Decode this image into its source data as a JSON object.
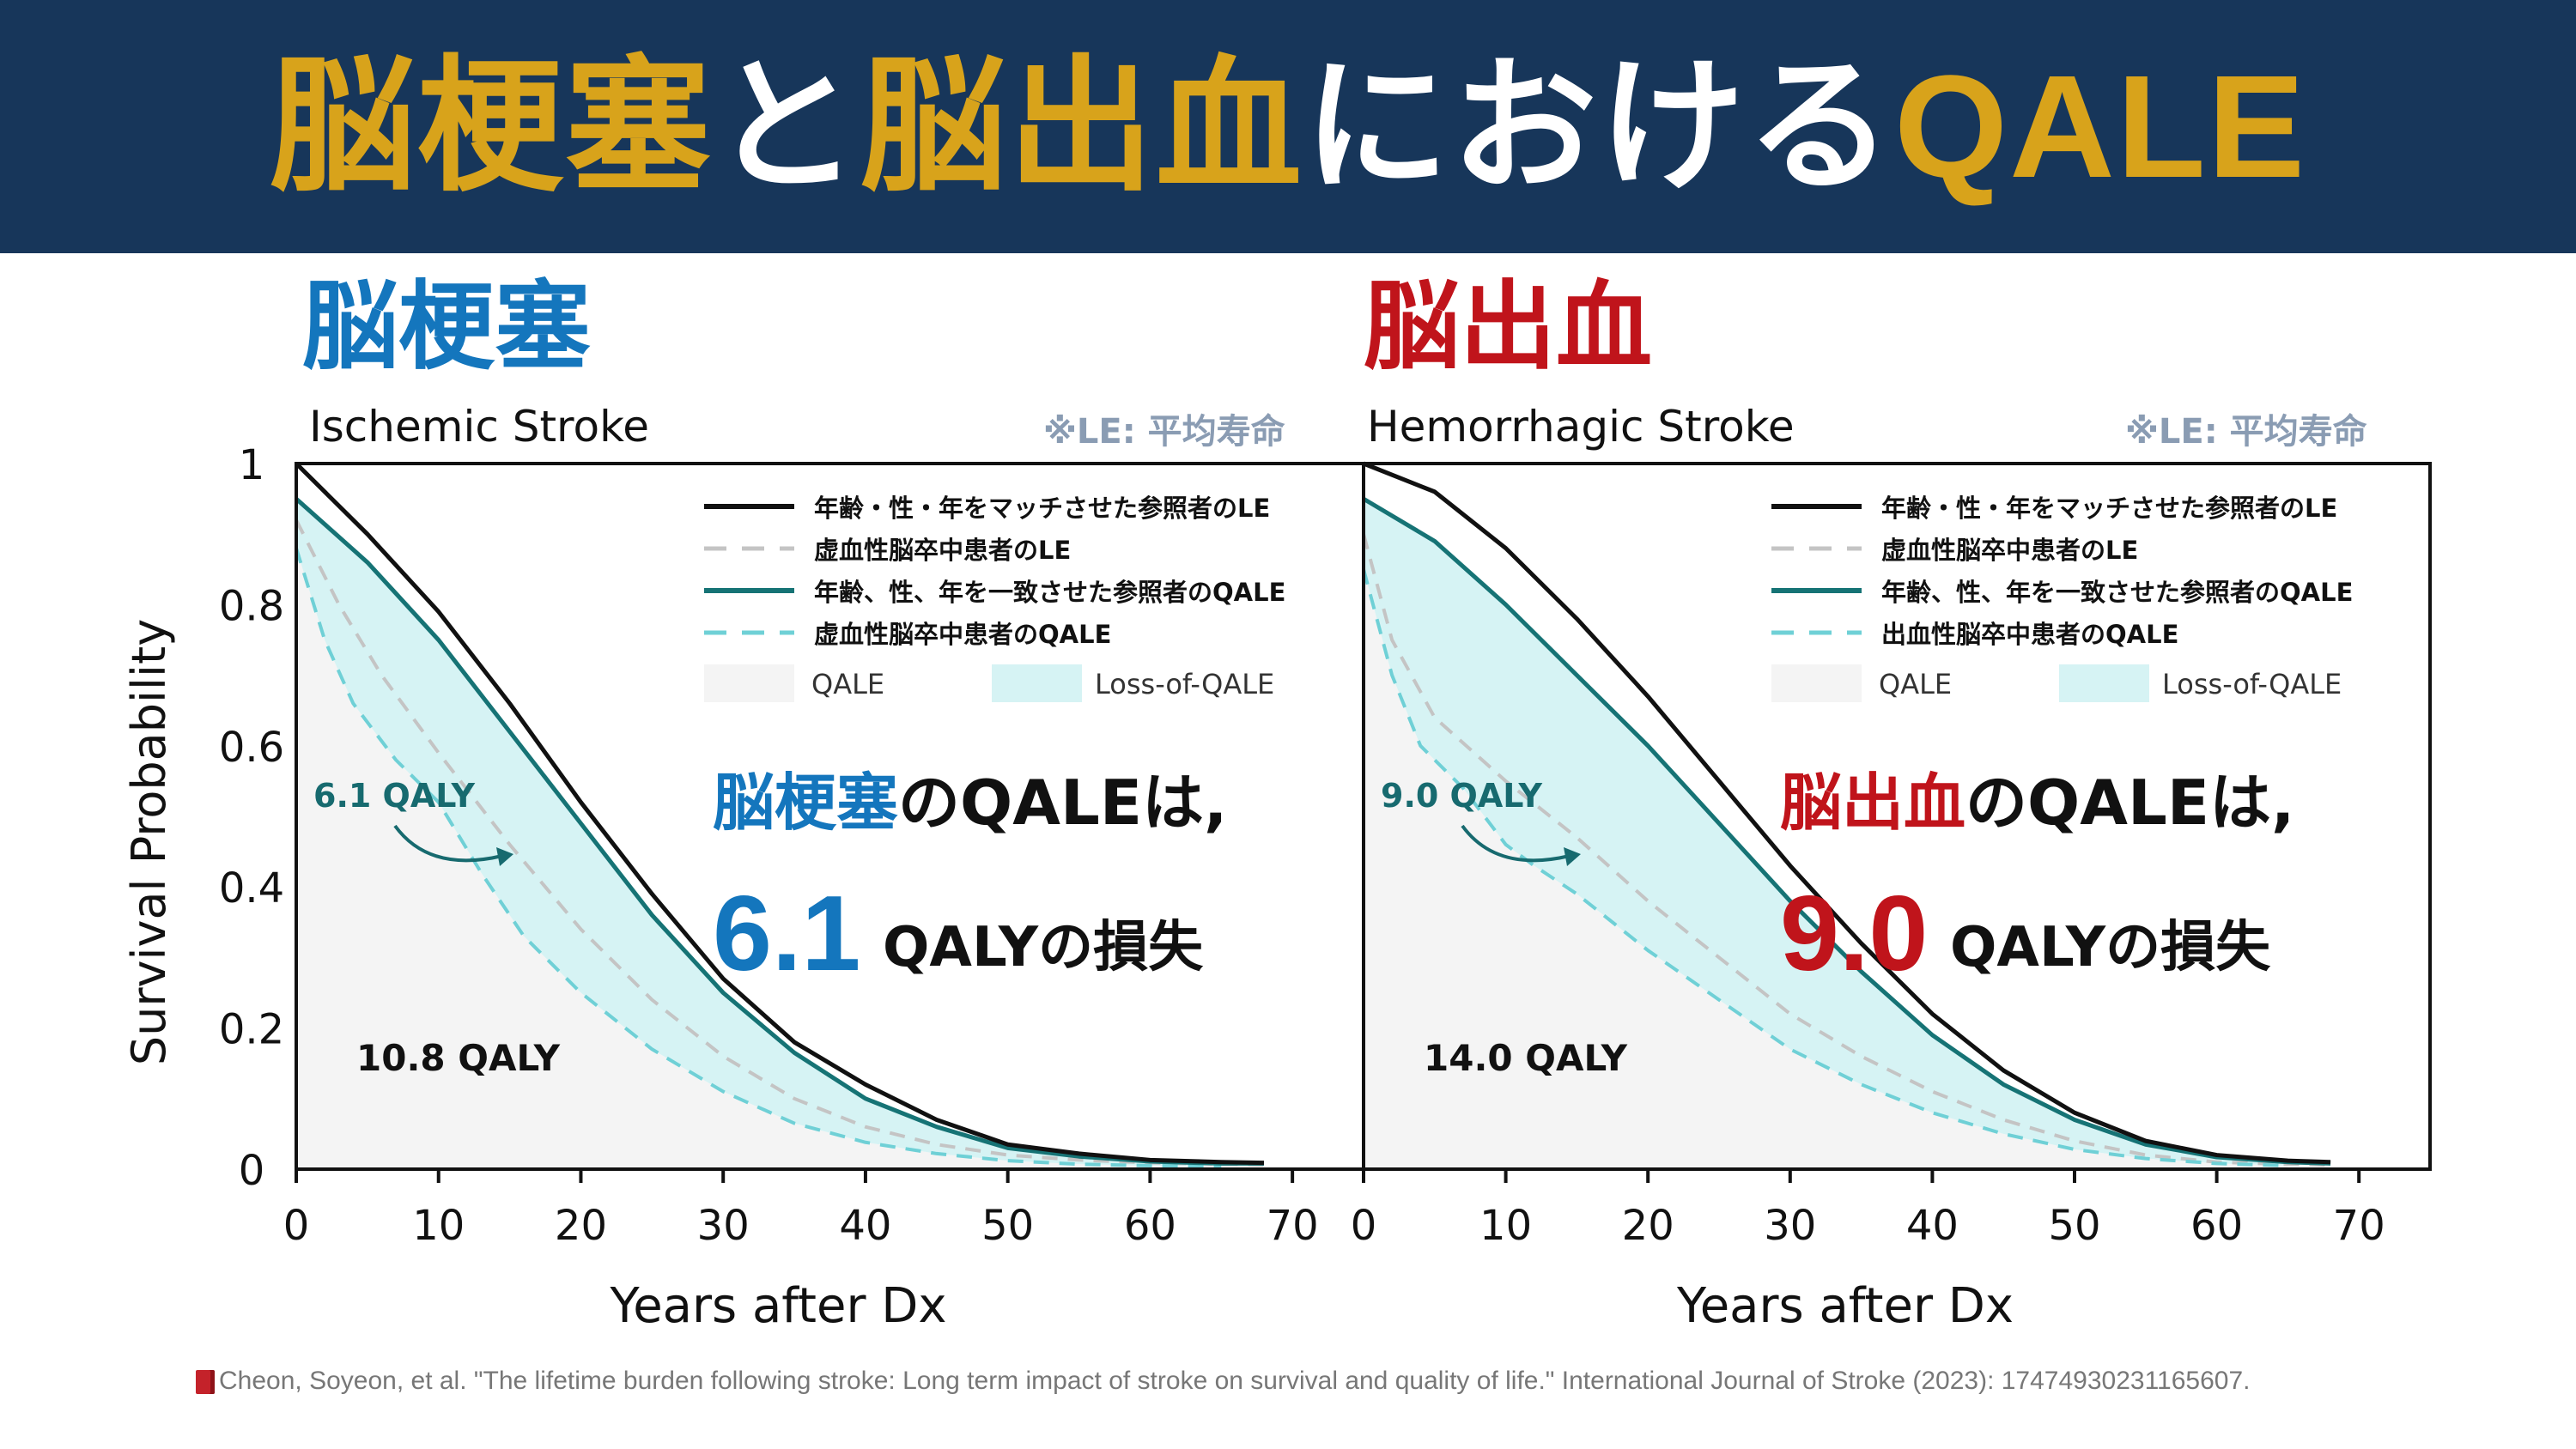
{
  "header": {
    "title_parts": [
      {
        "text": "脳梗塞",
        "color": "#d8a31b"
      },
      {
        "text": "と",
        "color": "#ffffff"
      },
      {
        "text": "脳出血",
        "color": "#d8a31b"
      },
      {
        "text": "における",
        "color": "#ffffff"
      },
      {
        "text": "QALE",
        "color": "#d8a31b"
      }
    ],
    "background": "#17365a"
  },
  "panels": [
    {
      "heading": "脳梗塞",
      "heading_color": "#1476bd",
      "subtitle": "Ischemic Stroke",
      "note": "※LE: 平均寿命",
      "legend": [
        "年齢・性・年をマッチさせた参照者のLE",
        "虚血性脳卒中患者のLE",
        "年齢、性、年を一致させた参照者のQALE",
        "虚血性脳卒中患者のQALE"
      ],
      "fill_legend": [
        "QALE",
        "Loss-of-QALE"
      ],
      "loss_annotation": "6.1 QALY",
      "qale_annotation": "10.8 QALY",
      "callout_line1_emph": "脳梗塞",
      "callout_line1_rest": "のQALEは,",
      "callout_value": "6.1",
      "callout_unit": "QALYの損失"
    },
    {
      "heading": "脳出血",
      "heading_color": "#c0141b",
      "subtitle": "Hemorrhagic Stroke",
      "note": "※LE: 平均寿命",
      "legend": [
        "年齢・性・年をマッチさせた参照者のLE",
        "虚血性脳卒中患者のLE",
        "年齢、性、年を一致させた参照者のQALE",
        "出血性脳卒中患者のQALE"
      ],
      "fill_legend": [
        "QALE",
        "Loss-of-QALE"
      ],
      "loss_annotation": "9.0 QALY",
      "qale_annotation": "14.0 QALY",
      "callout_line1_emph": "脳出血",
      "callout_line1_rest": "のQALEは,",
      "callout_value": "9.0",
      "callout_unit": "QALYの損失"
    }
  ],
  "chart_data": [
    {
      "type": "line",
      "title": "Ischemic Stroke",
      "xlabel": "Years after Dx",
      "ylabel": "Survival Probability",
      "xlim": [
        0,
        75
      ],
      "ylim": [
        0,
        1
      ],
      "xticks": [
        0,
        10,
        20,
        30,
        40,
        50,
        60,
        70
      ],
      "yticks": [
        0,
        0.2,
        0.4,
        0.6,
        0.8,
        1
      ],
      "ytick_labels": [
        "0",
        "0.2",
        "0.4",
        "0.6",
        "0.8",
        "1"
      ],
      "legend_position": "top-right",
      "colors": {
        "le_ref": "#111111",
        "le_pt": "#c4c4c4",
        "qale_ref": "#167375",
        "qale_pt": "#6fd0d6",
        "fill_loss": "#d6f3f4",
        "fill_qale": "#f4f4f4"
      },
      "series": [
        {
          "name": "年齢・性・年をマッチさせた参照者のLE",
          "style": "solid-black",
          "points": [
            [
              0,
              1.0
            ],
            [
              5,
              0.9
            ],
            [
              10,
              0.79
            ],
            [
              15,
              0.66
            ],
            [
              20,
              0.52
            ],
            [
              25,
              0.39
            ],
            [
              30,
              0.27
            ],
            [
              35,
              0.18
            ],
            [
              40,
              0.12
            ],
            [
              45,
              0.07
            ],
            [
              50,
              0.035
            ],
            [
              55,
              0.022
            ],
            [
              60,
              0.013
            ],
            [
              65,
              0.01
            ],
            [
              68,
              0.009
            ]
          ]
        },
        {
          "name": "虚血性脳卒中患者のLE",
          "style": "dashed-gray",
          "points": [
            [
              0,
              0.92
            ],
            [
              3,
              0.8
            ],
            [
              6,
              0.7
            ],
            [
              10,
              0.59
            ],
            [
              15,
              0.46
            ],
            [
              20,
              0.34
            ],
            [
              25,
              0.24
            ],
            [
              30,
              0.16
            ],
            [
              35,
              0.1
            ],
            [
              40,
              0.06
            ],
            [
              45,
              0.035
            ],
            [
              50,
              0.02
            ],
            [
              55,
              0.013
            ],
            [
              60,
              0.009
            ],
            [
              65,
              0.007
            ],
            [
              68,
              0.006
            ]
          ]
        },
        {
          "name": "年齢、性、年を一致させた参照者のQALE",
          "style": "solid-teal",
          "points": [
            [
              0,
              0.95
            ],
            [
              5,
              0.86
            ],
            [
              10,
              0.75
            ],
            [
              15,
              0.62
            ],
            [
              20,
              0.49
            ],
            [
              25,
              0.36
            ],
            [
              30,
              0.25
            ],
            [
              35,
              0.165
            ],
            [
              40,
              0.1
            ],
            [
              45,
              0.06
            ],
            [
              50,
              0.03
            ],
            [
              55,
              0.018
            ],
            [
              60,
              0.011
            ],
            [
              65,
              0.008
            ],
            [
              68,
              0.008
            ]
          ]
        },
        {
          "name": "虚血性脳卒中患者のQALE",
          "style": "dashed-cyan",
          "points": [
            [
              0,
              0.88
            ],
            [
              2,
              0.75
            ],
            [
              4,
              0.66
            ],
            [
              7,
              0.58
            ],
            [
              10,
              0.52
            ],
            [
              13,
              0.42
            ],
            [
              16,
              0.33
            ],
            [
              20,
              0.25
            ],
            [
              25,
              0.17
            ],
            [
              30,
              0.11
            ],
            [
              35,
              0.065
            ],
            [
              40,
              0.038
            ],
            [
              45,
              0.022
            ],
            [
              50,
              0.012
            ],
            [
              55,
              0.007
            ],
            [
              60,
              0.005
            ],
            [
              65,
              0.004
            ]
          ]
        }
      ]
    },
    {
      "type": "line",
      "title": "Hemorrhagic Stroke",
      "xlabel": "Years after Dx",
      "ylabel": "",
      "xlim": [
        0,
        75
      ],
      "ylim": [
        0,
        1
      ],
      "xticks": [
        0,
        10,
        20,
        30,
        40,
        50,
        60,
        70
      ],
      "yticks": [],
      "ytick_labels": [],
      "legend_position": "top-right",
      "colors": {
        "le_ref": "#111111",
        "le_pt": "#c4c4c4",
        "qale_ref": "#167375",
        "qale_pt": "#6fd0d6",
        "fill_loss": "#d6f3f4",
        "fill_qale": "#f4f4f4"
      },
      "series": [
        {
          "name": "年齢・性・年をマッチさせた参照者のLE",
          "style": "solid-black",
          "points": [
            [
              0,
              1.0
            ],
            [
              5,
              0.96
            ],
            [
              10,
              0.88
            ],
            [
              15,
              0.78
            ],
            [
              20,
              0.67
            ],
            [
              25,
              0.55
            ],
            [
              30,
              0.43
            ],
            [
              35,
              0.32
            ],
            [
              40,
              0.22
            ],
            [
              45,
              0.14
            ],
            [
              50,
              0.08
            ],
            [
              55,
              0.04
            ],
            [
              60,
              0.02
            ],
            [
              65,
              0.012
            ],
            [
              68,
              0.01
            ]
          ]
        },
        {
          "name": "虚血性脳卒中患者のLE",
          "style": "dashed-gray",
          "points": [
            [
              0,
              0.9
            ],
            [
              2,
              0.75
            ],
            [
              5,
              0.64
            ],
            [
              10,
              0.55
            ],
            [
              15,
              0.47
            ],
            [
              20,
              0.38
            ],
            [
              25,
              0.3
            ],
            [
              30,
              0.22
            ],
            [
              35,
              0.16
            ],
            [
              40,
              0.11
            ],
            [
              45,
              0.07
            ],
            [
              50,
              0.04
            ],
            [
              55,
              0.02
            ],
            [
              60,
              0.01
            ],
            [
              65,
              0.007
            ],
            [
              68,
              0.006
            ]
          ]
        },
        {
          "name": "年齢、性、年を一致させた参照者のQALE",
          "style": "solid-teal",
          "points": [
            [
              0,
              0.95
            ],
            [
              5,
              0.89
            ],
            [
              10,
              0.8
            ],
            [
              15,
              0.7
            ],
            [
              20,
              0.6
            ],
            [
              25,
              0.49
            ],
            [
              30,
              0.38
            ],
            [
              35,
              0.28
            ],
            [
              40,
              0.19
            ],
            [
              45,
              0.12
            ],
            [
              50,
              0.07
            ],
            [
              55,
              0.035
            ],
            [
              60,
              0.017
            ],
            [
              65,
              0.01
            ],
            [
              68,
              0.008
            ]
          ]
        },
        {
          "name": "出血性脳卒中患者のQALE",
          "style": "dashed-cyan",
          "points": [
            [
              0,
              0.85
            ],
            [
              2,
              0.7
            ],
            [
              4,
              0.6
            ],
            [
              7,
              0.54
            ],
            [
              10,
              0.46
            ],
            [
              12,
              0.43
            ],
            [
              15,
              0.39
            ],
            [
              20,
              0.31
            ],
            [
              25,
              0.24
            ],
            [
              30,
              0.17
            ],
            [
              35,
              0.12
            ],
            [
              40,
              0.08
            ],
            [
              45,
              0.05
            ],
            [
              50,
              0.028
            ],
            [
              55,
              0.015
            ],
            [
              60,
              0.008
            ],
            [
              65,
              0.005
            ]
          ]
        }
      ]
    }
  ],
  "citation": "Cheon, Soyeon, et al. \"The lifetime burden following stroke: Long term impact of stroke on survival and quality of life.\" International Journal of Stroke (2023): 17474930231165607."
}
